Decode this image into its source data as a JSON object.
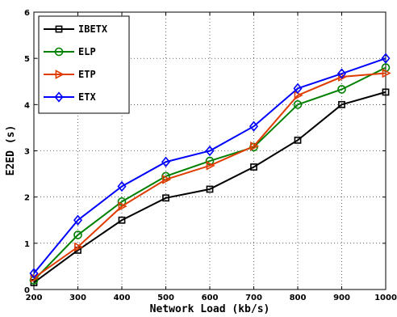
{
  "chart_data": {
    "type": "line",
    "title": "",
    "xlabel": "Network Load (kb/s)",
    "ylabel": "E2ED  (s)",
    "x": [
      200,
      300,
      400,
      500,
      600,
      700,
      800,
      900,
      1000
    ],
    "xlim": [
      200,
      1000
    ],
    "ylim": [
      0,
      6
    ],
    "xticks": [
      "200",
      "300",
      "400",
      "500",
      "600",
      "700",
      "800",
      "900",
      "1000"
    ],
    "yticks": [
      "0",
      "1",
      "2",
      "3",
      "4",
      "5",
      "6"
    ],
    "grid": true,
    "legend_position": "top-left",
    "series": [
      {
        "name": "IBETX",
        "color": "#000000",
        "marker": "square",
        "values": [
          0.15,
          0.85,
          1.5,
          1.98,
          2.17,
          2.65,
          3.23,
          4.0,
          4.27
        ]
      },
      {
        "name": "ELP",
        "color": "#008000",
        "marker": "circle",
        "values": [
          0.2,
          1.18,
          1.9,
          2.45,
          2.78,
          3.08,
          4.0,
          4.33,
          4.8
        ]
      },
      {
        "name": "ETP",
        "color": "#e03c00",
        "marker": "triangle-right",
        "values": [
          0.25,
          0.92,
          1.8,
          2.38,
          2.68,
          3.1,
          4.2,
          4.6,
          4.68
        ]
      },
      {
        "name": "ETX",
        "color": "#0000ff",
        "marker": "diamond",
        "values": [
          0.35,
          1.5,
          2.23,
          2.76,
          3.0,
          3.53,
          4.35,
          4.67,
          5.0
        ]
      }
    ]
  }
}
